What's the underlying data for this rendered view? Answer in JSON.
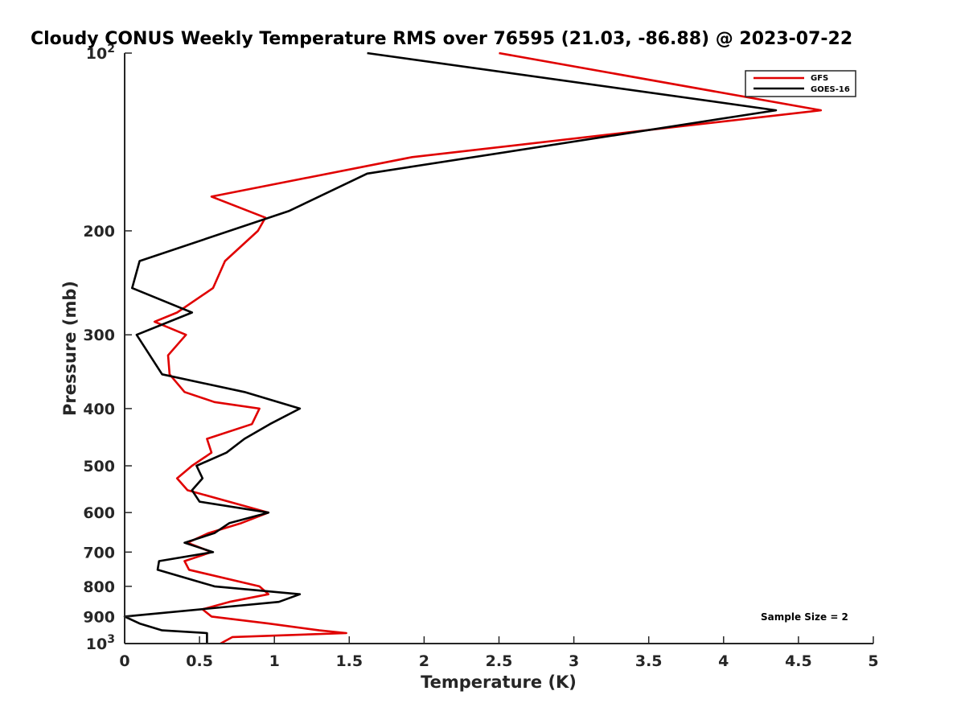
{
  "chart_data": {
    "type": "line",
    "title": "Cloudy CONUS Weekly Temperature RMS over 76595 (21.03, -86.88) @ 2023-07-22",
    "xlabel": "Temperature (K)",
    "ylabel": "Pressure (mb)",
    "xlim": [
      0,
      5
    ],
    "ylim": [
      100,
      1000
    ],
    "y_scale": "log",
    "y_reversed": true,
    "grid": false,
    "legend_position": "top-right",
    "annotation": "Sample Size = 2",
    "x_ticks": [
      {
        "value": 0,
        "label": "0"
      },
      {
        "value": 0.5,
        "label": "0.5"
      },
      {
        "value": 1,
        "label": "1"
      },
      {
        "value": 1.5,
        "label": "1.5"
      },
      {
        "value": 2,
        "label": "2"
      },
      {
        "value": 2.5,
        "label": "2.5"
      },
      {
        "value": 3,
        "label": "3"
      },
      {
        "value": 3.5,
        "label": "3.5"
      },
      {
        "value": 4,
        "label": "4"
      },
      {
        "value": 4.5,
        "label": "4.5"
      },
      {
        "value": 5,
        "label": "5"
      }
    ],
    "y_ticks": [
      {
        "value": 100,
        "base": "10",
        "exp": "2"
      },
      {
        "value": 200,
        "base": "200",
        "exp": ""
      },
      {
        "value": 300,
        "base": "300",
        "exp": ""
      },
      {
        "value": 400,
        "base": "400",
        "exp": ""
      },
      {
        "value": 500,
        "base": "500",
        "exp": ""
      },
      {
        "value": 600,
        "base": "600",
        "exp": ""
      },
      {
        "value": 700,
        "base": "700",
        "exp": ""
      },
      {
        "value": 800,
        "base": "800",
        "exp": ""
      },
      {
        "value": 900,
        "base": "900",
        "exp": ""
      },
      {
        "value": 1000,
        "base": "10",
        "exp": "3"
      }
    ],
    "series": [
      {
        "name": "GFS",
        "color": "#e00000",
        "points": [
          [
            2.5,
            100
          ],
          [
            4.65,
            125
          ],
          [
            1.92,
            150
          ],
          [
            0.58,
            175
          ],
          [
            0.94,
            190
          ],
          [
            0.89,
            200
          ],
          [
            0.67,
            225
          ],
          [
            0.59,
            250
          ],
          [
            0.35,
            275
          ],
          [
            0.2,
            285
          ],
          [
            0.41,
            300
          ],
          [
            0.29,
            325
          ],
          [
            0.3,
            350
          ],
          [
            0.4,
            375
          ],
          [
            0.6,
            390
          ],
          [
            0.9,
            400
          ],
          [
            0.85,
            425
          ],
          [
            0.55,
            450
          ],
          [
            0.58,
            475
          ],
          [
            0.45,
            500
          ],
          [
            0.35,
            525
          ],
          [
            0.42,
            550
          ],
          [
            0.96,
            600
          ],
          [
            0.78,
            625
          ],
          [
            0.56,
            650
          ],
          [
            0.42,
            675
          ],
          [
            0.58,
            700
          ],
          [
            0.4,
            725
          ],
          [
            0.43,
            750
          ],
          [
            0.9,
            800
          ],
          [
            0.96,
            825
          ],
          [
            0.7,
            850
          ],
          [
            0.52,
            875
          ],
          [
            0.58,
            900
          ],
          [
            0.96,
            925
          ],
          [
            1.3,
            950
          ],
          [
            1.48,
            960
          ],
          [
            0.72,
            975
          ],
          [
            0.64,
            1000
          ]
        ]
      },
      {
        "name": "GOES-16",
        "color": "#000000",
        "points": [
          [
            1.62,
            100
          ],
          [
            4.35,
            125
          ],
          [
            1.62,
            160
          ],
          [
            1.1,
            185
          ],
          [
            0.1,
            225
          ],
          [
            0.05,
            250
          ],
          [
            0.45,
            275
          ],
          [
            0.08,
            300
          ],
          [
            0.25,
            350
          ],
          [
            0.8,
            375
          ],
          [
            1.17,
            400
          ],
          [
            0.97,
            425
          ],
          [
            0.8,
            450
          ],
          [
            0.68,
            475
          ],
          [
            0.48,
            500
          ],
          [
            0.52,
            525
          ],
          [
            0.45,
            550
          ],
          [
            0.5,
            575
          ],
          [
            0.96,
            600
          ],
          [
            0.7,
            625
          ],
          [
            0.6,
            650
          ],
          [
            0.4,
            675
          ],
          [
            0.59,
            700
          ],
          [
            0.23,
            725
          ],
          [
            0.22,
            750
          ],
          [
            0.6,
            800
          ],
          [
            1.17,
            825
          ],
          [
            1.03,
            850
          ],
          [
            0.0,
            900
          ],
          [
            0.1,
            925
          ],
          [
            0.25,
            950
          ],
          [
            0.55,
            960
          ],
          [
            0.55,
            975
          ],
          [
            0.55,
            1000
          ]
        ]
      }
    ]
  }
}
